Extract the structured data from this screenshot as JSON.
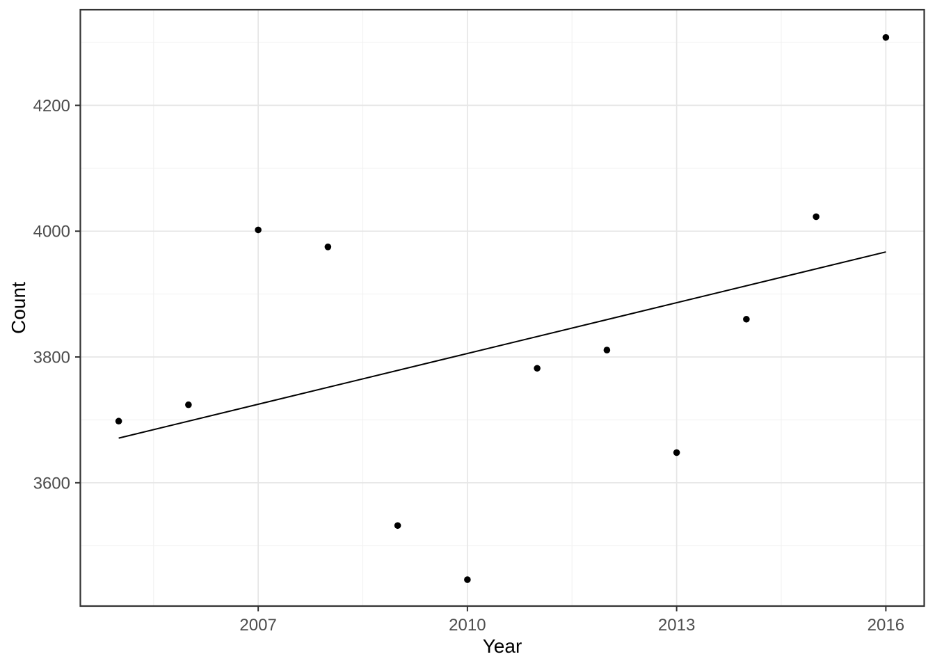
{
  "figure": {
    "background": "#ffffff"
  },
  "chart_data": {
    "type": "scatter",
    "title": "",
    "xlabel": "Year",
    "ylabel": "Count",
    "x_ticks": [
      2007,
      2010,
      2013,
      2016
    ],
    "y_ticks": [
      3600,
      3800,
      4000,
      4200
    ],
    "x_minor_gridlines": [
      2005.5,
      2008.5,
      2011.5,
      2014.5
    ],
    "y_minor_gridlines": [
      3500,
      3700,
      3900,
      4100,
      4300
    ],
    "xlim": [
      2004.45,
      2016.55
    ],
    "ylim": [
      3404,
      4352
    ],
    "grid": "on",
    "legend": "none",
    "points": [
      {
        "x": 2005,
        "y": 3698
      },
      {
        "x": 2006,
        "y": 3724
      },
      {
        "x": 2007,
        "y": 4002
      },
      {
        "x": 2008,
        "y": 3975
      },
      {
        "x": 2009,
        "y": 3532
      },
      {
        "x": 2010,
        "y": 3446
      },
      {
        "x": 2011,
        "y": 3782
      },
      {
        "x": 2012,
        "y": 3811
      },
      {
        "x": 2013,
        "y": 3648
      },
      {
        "x": 2014,
        "y": 3860
      },
      {
        "x": 2015,
        "y": 4023
      },
      {
        "x": 2016,
        "y": 4308
      }
    ],
    "trend_line": {
      "x1": 2005,
      "y1": 3671,
      "x2": 2016,
      "y2": 3967
    },
    "colors": {
      "point": "#000000",
      "trend": "#000000",
      "grid_major": "#e6e6e6",
      "grid_minor": "#f1f1f1",
      "panel_border": "#333333",
      "tick_mark": "#333333",
      "tick_label": "#4d4d4d",
      "axis_title": "#000000",
      "panel_background": "#ffffff"
    }
  }
}
